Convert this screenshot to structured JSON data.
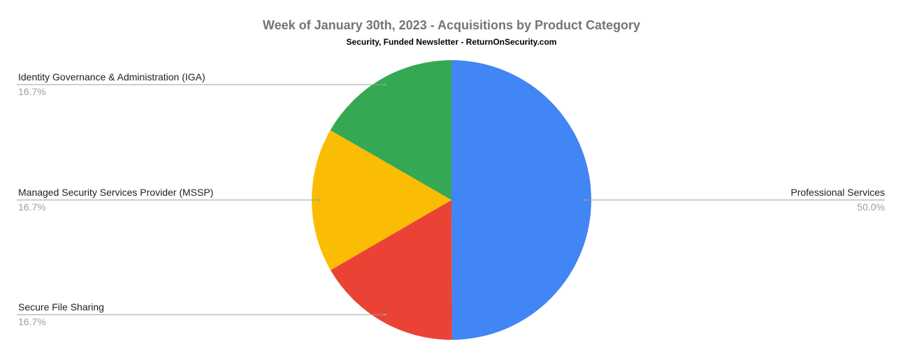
{
  "chart_data": {
    "type": "pie",
    "title": "Week of January 30th, 2023 - Acquisitions by Product Category",
    "subtitle": "Security, Funded Newsletter - ReturnOnSecurity.com",
    "slices": [
      {
        "label": "Professional Services",
        "value": 50.0,
        "percent_label": "50.0%",
        "color": "#4285F4"
      },
      {
        "label": "Secure File Sharing",
        "value": 16.7,
        "percent_label": "16.7%",
        "color": "#EA4335"
      },
      {
        "label": "Managed Security Services Provider (MSSP)",
        "value": 16.7,
        "percent_label": "16.7%",
        "color": "#FBBC04"
      },
      {
        "label": "Identity Governance & Administration (IGA)",
        "value": 16.7,
        "percent_label": "16.7%",
        "color": "#34A853"
      }
    ],
    "legend": "labels beside slices"
  }
}
